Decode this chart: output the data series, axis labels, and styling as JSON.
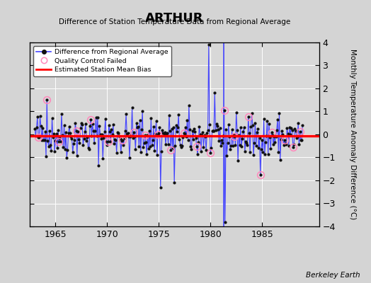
{
  "title": "ARTHUR",
  "subtitle": "Difference of Station Temperature Data from Regional Average",
  "ylabel_right": "Monthly Temperature Anomaly Difference (°C)",
  "xlim": [
    1962.5,
    1990.5
  ],
  "ylim": [
    -4,
    4
  ],
  "yticks": [
    -4,
    -3,
    -2,
    -1,
    0,
    1,
    2,
    3,
    4
  ],
  "xticks": [
    1965,
    1970,
    1975,
    1980,
    1985
  ],
  "background_color": "#d4d4d4",
  "plot_bg_color": "#d8d8d8",
  "bias_value": -0.05,
  "time_of_obs_change_x": 1981.3,
  "grid_color": "#ffffff",
  "line_color": "#4444ff",
  "bias_color": "#ff0000",
  "marker_color": "#111111",
  "qc_color": "#ff88bb",
  "berkeley_earth_text": "Berkeley Earth",
  "seed": 42,
  "n_points": 312,
  "start_year": 1963.0,
  "end_year": 1988.9
}
